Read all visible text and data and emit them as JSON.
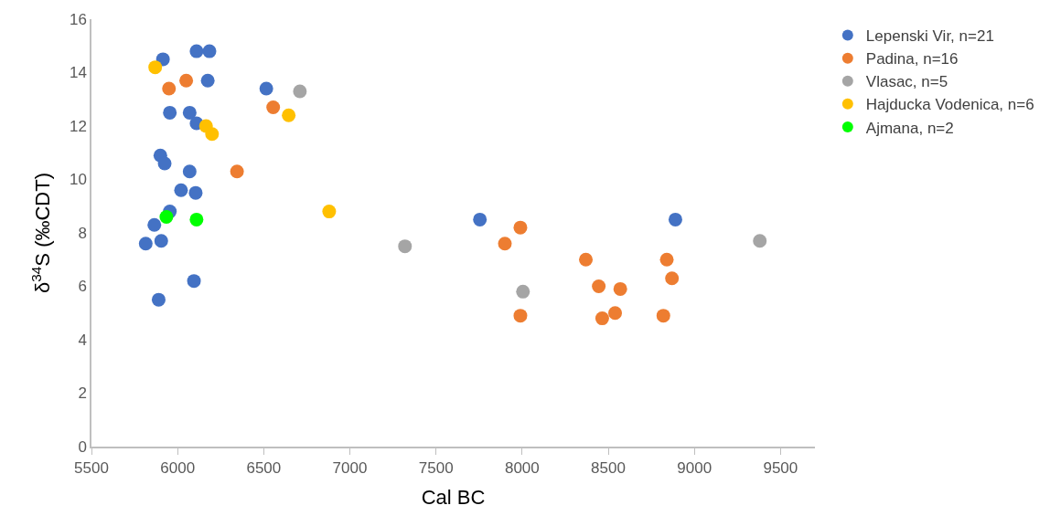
{
  "chart_data": {
    "type": "scatter",
    "xlabel": "Cal BC",
    "ylabel": "δ$^{34}$S (‰CDT)",
    "xlim": [
      5500,
      9700
    ],
    "xticks": [
      5500,
      6000,
      6500,
      7000,
      7500,
      8000,
      8500,
      9000,
      9500
    ],
    "ylim": [
      0,
      16
    ],
    "yticks": [
      0,
      2,
      4,
      6,
      8,
      10,
      12,
      14,
      16
    ],
    "grid": false,
    "legend": "right",
    "marker": "circle",
    "series": [
      {
        "name": "Lepenski Vir, n=21",
        "color": "#4472c4",
        "x": [
          5915,
          6110,
          6185,
          6175,
          6515,
          5955,
          6070,
          6110,
          5900,
          5925,
          6070,
          6020,
          6105,
          5955,
          5865,
          5905,
          5815,
          6095,
          5890,
          7755,
          8890
        ],
        "values": [
          14.5,
          14.8,
          14.8,
          13.7,
          13.4,
          12.5,
          12.5,
          12.1,
          10.9,
          10.6,
          10.3,
          9.6,
          9.5,
          8.8,
          8.3,
          7.7,
          7.6,
          6.2,
          5.5,
          8.5,
          8.5
        ]
      },
      {
        "name": "Padina, n=16",
        "color": "#ed7d31",
        "x": [
          5950,
          6050,
          6555,
          6345,
          7990,
          7900,
          8370,
          8840,
          8870,
          8445,
          8570,
          7990,
          8465,
          8540,
          8820
        ],
        "values": [
          13.4,
          13.7,
          12.7,
          10.3,
          8.2,
          7.6,
          7.0,
          7.0,
          6.3,
          6.0,
          5.9,
          4.9,
          4.8,
          5.0,
          4.9
        ]
      },
      {
        "name": "Vlasac, n=5",
        "color": "#a5a5a5",
        "x": [
          6710,
          7320,
          8005,
          9380
        ],
        "values": [
          13.3,
          7.5,
          5.8,
          7.7
        ]
      },
      {
        "name": "Hajducka Vodenica, n=6",
        "color": "#ffc000",
        "x": [
          5870,
          6165,
          6200,
          6645,
          6880
        ],
        "values": [
          14.2,
          12.0,
          11.7,
          12.4,
          8.8
        ]
      },
      {
        "name": "Ajmana, n=2",
        "color": "#00ff00",
        "x": [
          5935,
          6110
        ],
        "values": [
          8.6,
          8.5
        ]
      }
    ]
  }
}
